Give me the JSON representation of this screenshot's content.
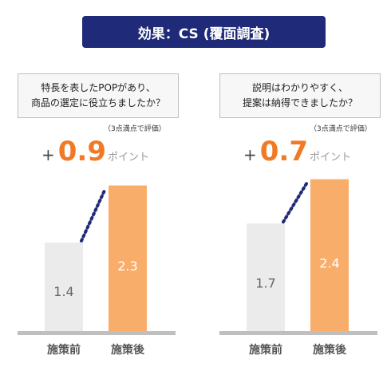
{
  "title": "効果：CS (覆面調査)",
  "colors": {
    "header_bg": "#1f2a78",
    "before_bar": "#ebebeb",
    "after_bar": "#f9ad6b",
    "accent": "#f07a26",
    "dotted": "#1f2a78"
  },
  "chart_data": [
    {
      "type": "bar",
      "question_line1": "特長を表したPOPがあり、",
      "question_line2": "商品の選定に役立ちましたか？",
      "scale_note": "（3点満点で評価）",
      "delta_prefix": "+",
      "delta_value": "0.9",
      "delta_unit": "ポイント",
      "categories": [
        "施策前",
        "施策後"
      ],
      "values": [
        1.4,
        2.3
      ],
      "value_labels": [
        "1.4",
        "2.3"
      ],
      "ylim": [
        0,
        3
      ]
    },
    {
      "type": "bar",
      "question_line1": "説明はわかりやすく、",
      "question_line2": "提案は納得できましたか？",
      "scale_note": "（3点満点で評価）",
      "delta_prefix": "+",
      "delta_value": "0.7",
      "delta_unit": "ポイント",
      "categories": [
        "施策前",
        "施策後"
      ],
      "values": [
        1.7,
        2.4
      ],
      "value_labels": [
        "1.7",
        "2.4"
      ],
      "ylim": [
        0,
        3
      ]
    }
  ]
}
